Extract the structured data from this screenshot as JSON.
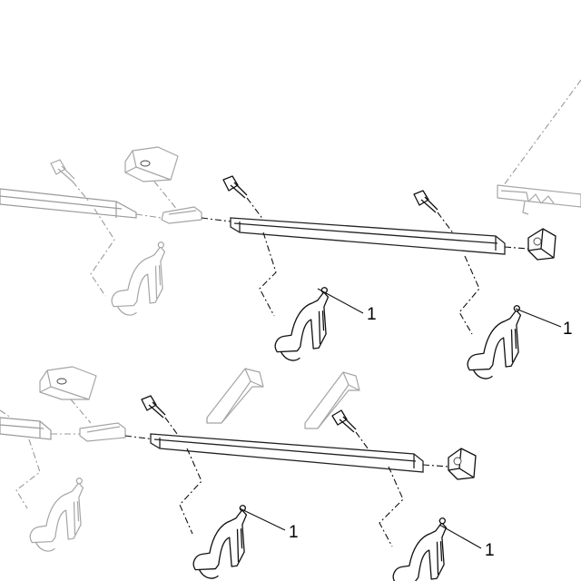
{
  "diagram": {
    "callouts": [
      {
        "label": "1"
      },
      {
        "label": "1"
      },
      {
        "label": "1"
      },
      {
        "label": "1"
      }
    ]
  }
}
